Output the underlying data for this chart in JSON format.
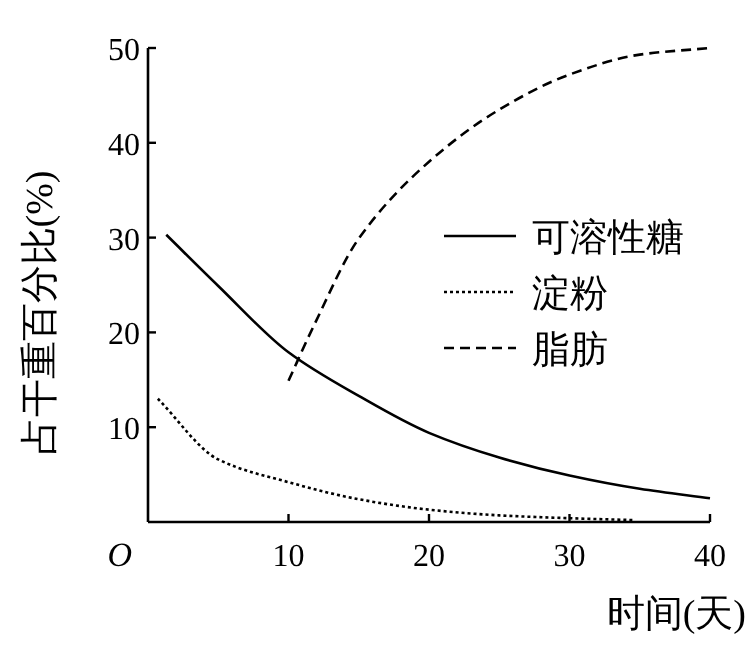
{
  "chart_data": {
    "type": "line",
    "xlabel": "时间(天)",
    "ylabel": "占干重百分比(%)",
    "annotations": [
      "O"
    ],
    "xlim": [
      0,
      40
    ],
    "ylim": [
      0,
      50
    ],
    "xticks": [
      10,
      20,
      30,
      40
    ],
    "yticks": [
      10,
      20,
      30,
      40,
      50
    ],
    "grid": false,
    "legend": "right",
    "marker": "none",
    "series": [
      {
        "name": "可溶性糖",
        "color": "#000000",
        "line_style": "solid",
        "x": [
          1.3,
          5,
          10,
          15,
          20,
          25,
          30,
          35,
          40
        ],
        "values": [
          30.3,
          24.9,
          17.9,
          13.3,
          9.4,
          6.8,
          4.9,
          3.5,
          2.5
        ]
      },
      {
        "name": "淀粉",
        "color": "#000000",
        "line_style": "dotted",
        "x": [
          0.7,
          5,
          10,
          15,
          20,
          25,
          30,
          34.5
        ],
        "values": [
          13,
          6.6,
          4.2,
          2.4,
          1.3,
          0.7,
          0.4,
          0.2
        ]
      },
      {
        "name": "脂肪",
        "color": "#000000",
        "line_style": "dashed",
        "x": [
          10,
          11.8,
          15,
          20,
          25,
          30,
          35,
          40
        ],
        "values": [
          14.9,
          20.7,
          29.9,
          38,
          43.5,
          47.2,
          49.3,
          50
        ]
      }
    ]
  }
}
